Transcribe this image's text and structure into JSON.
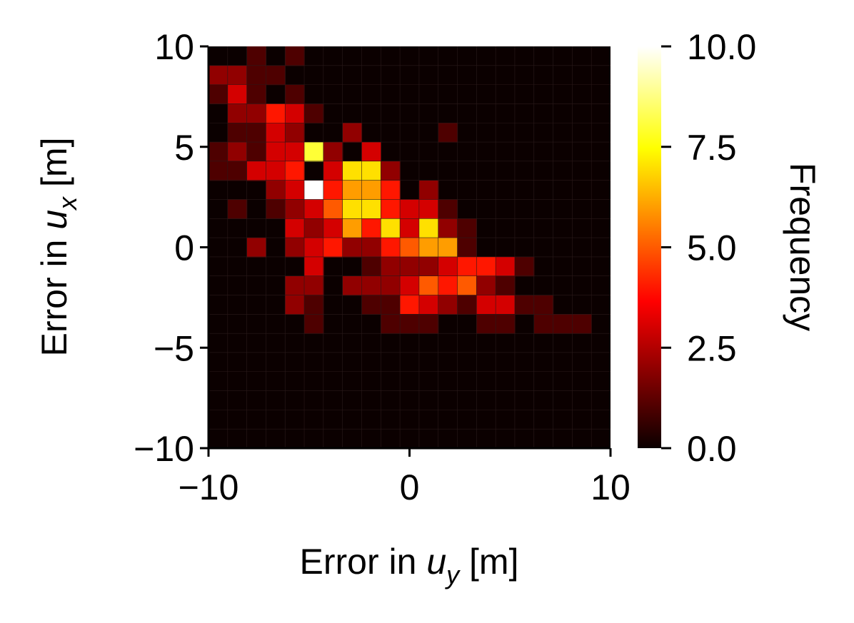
{
  "chart_data": {
    "type": "heatmap",
    "xlabel": {
      "pre": "Error in ",
      "var": "u",
      "sub": "y",
      "post": " [m]"
    },
    "ylabel": {
      "pre": "Error in ",
      "var": "u",
      "sub": "x",
      "post": " [m]"
    },
    "xlim": [
      -10,
      10
    ],
    "ylim": [
      -10,
      10
    ],
    "x_ticks": [
      "−10",
      "0",
      "10"
    ],
    "y_ticks": [
      "10",
      "5",
      "0",
      "−5",
      "−10"
    ],
    "colorbar": {
      "label": "Frequency",
      "range": [
        0,
        10
      ],
      "ticks": [
        "10.0",
        "7.5",
        "5.0",
        "2.5",
        "0.0"
      ],
      "colormap": "hot",
      "stops": [
        "#0b0000",
        "#ff0000",
        "#ffff00",
        "#ffffff"
      ]
    },
    "bins_x": 21,
    "bins_y": 21,
    "bin_rows_top_to_bottom": [
      [
        0,
        0,
        1,
        0,
        1,
        0,
        0,
        0,
        0,
        0,
        0,
        0,
        0,
        0,
        0,
        0,
        0,
        0,
        0,
        0,
        0
      ],
      [
        2,
        2,
        1,
        1,
        0,
        0,
        0,
        0,
        0,
        0,
        0,
        0,
        0,
        0,
        0,
        0,
        0,
        0,
        0,
        0,
        0
      ],
      [
        1,
        3,
        1,
        0,
        1,
        0,
        0,
        0,
        0,
        0,
        0,
        0,
        0,
        0,
        0,
        0,
        0,
        0,
        0,
        0,
        0
      ],
      [
        0,
        2,
        2,
        4,
        3,
        1,
        0,
        0,
        0,
        0,
        0,
        0,
        0,
        0,
        0,
        0,
        0,
        0,
        0,
        0,
        0
      ],
      [
        0,
        1,
        1,
        3,
        2,
        0,
        0,
        2,
        0,
        0,
        0,
        0,
        1,
        0,
        0,
        0,
        0,
        0,
        0,
        0,
        0
      ],
      [
        1,
        2,
        1,
        3,
        3,
        8,
        2,
        0,
        3,
        0,
        0,
        0,
        0,
        0,
        0,
        0,
        0,
        0,
        0,
        0,
        0
      ],
      [
        1,
        1,
        3,
        3,
        4,
        0,
        3,
        7,
        7,
        2,
        0,
        0,
        0,
        0,
        0,
        0,
        0,
        0,
        0,
        0,
        0
      ],
      [
        0,
        0,
        0,
        2,
        3,
        10,
        4,
        6,
        6,
        4,
        0,
        2,
        0,
        0,
        0,
        0,
        0,
        0,
        0,
        0,
        0
      ],
      [
        0,
        1,
        0,
        1,
        2,
        3,
        5,
        7,
        7,
        4,
        3,
        3,
        1,
        0,
        0,
        0,
        0,
        0,
        0,
        0,
        0
      ],
      [
        0,
        0,
        0,
        0,
        3,
        2,
        3,
        6,
        4,
        7,
        3,
        7,
        2,
        1,
        0,
        0,
        0,
        0,
        0,
        0,
        0
      ],
      [
        0,
        0,
        2,
        0,
        2,
        3,
        4,
        2,
        2,
        4,
        5,
        6,
        6,
        1,
        0,
        0,
        0,
        0,
        0,
        0,
        0
      ],
      [
        0,
        0,
        0,
        0,
        0,
        3,
        0,
        0,
        1,
        2,
        2,
        2,
        3,
        4,
        4,
        3,
        1,
        0,
        0,
        0,
        0
      ],
      [
        0,
        0,
        0,
        0,
        0,
        0,
        0,
        0,
        0,
        0,
        0,
        0,
        0,
        0,
        0,
        0,
        0,
        0,
        0,
        0,
        0
      ],
      [
        0,
        0,
        0,
        0,
        0,
        0,
        0,
        0,
        0,
        0,
        0,
        0,
        0,
        0,
        0,
        0,
        0,
        0,
        0,
        0,
        0
      ],
      [
        0,
        0,
        0,
        0,
        0,
        0,
        0,
        0,
        0,
        0,
        0,
        0,
        0,
        0,
        0,
        0,
        0,
        0,
        0,
        0,
        0
      ],
      [
        0,
        0,
        0,
        0,
        0,
        0,
        0,
        0,
        0,
        0,
        0,
        0,
        0,
        0,
        0,
        0,
        0,
        0,
        0,
        0,
        0
      ],
      [
        0,
        0,
        0,
        0,
        0,
        0,
        0,
        0,
        0,
        0,
        0,
        0,
        0,
        0,
        0,
        0,
        0,
        0,
        0,
        0,
        0
      ],
      [
        0,
        0,
        0,
        0,
        0,
        0,
        0,
        0,
        0,
        0,
        0,
        0,
        0,
        0,
        0,
        0,
        0,
        0,
        0,
        0,
        0
      ],
      [
        0,
        0,
        0,
        0,
        0,
        0,
        0,
        0,
        0,
        0,
        0,
        0,
        0,
        0,
        0,
        0,
        0,
        0,
        0,
        0,
        0
      ],
      [
        0,
        0,
        0,
        0,
        0,
        0,
        0,
        0,
        0,
        0,
        0,
        0,
        0,
        0,
        0,
        0,
        0,
        0,
        0,
        0,
        0
      ],
      [
        0,
        0,
        0,
        0,
        0,
        0,
        0,
        0,
        0,
        0,
        0,
        0,
        0,
        0,
        0,
        0,
        0,
        0,
        0,
        0,
        0
      ]
    ],
    "bin_rows_lower_half": [
      [
        0,
        0,
        0,
        0,
        2,
        2,
        0,
        2,
        2,
        2,
        3,
        5,
        4,
        5,
        2,
        1,
        0,
        0,
        0,
        0,
        0
      ],
      [
        0,
        0,
        0,
        0,
        2,
        1,
        0,
        0,
        1,
        1,
        4,
        3,
        2,
        1,
        3,
        3,
        1,
        1,
        0,
        0,
        0
      ],
      [
        0,
        0,
        0,
        0,
        0,
        1,
        0,
        0,
        0,
        1,
        1,
        1,
        0,
        0,
        1,
        1,
        0,
        1,
        1,
        1,
        0
      ],
      [
        0,
        0,
        0,
        0,
        0,
        0,
        0,
        0,
        0,
        0,
        0,
        0,
        0,
        0,
        0,
        0,
        0,
        0,
        0,
        0,
        0
      ],
      [
        0,
        0,
        0,
        0,
        0,
        0,
        0,
        0,
        0,
        0,
        0,
        0,
        0,
        0,
        0,
        0,
        0,
        0,
        0,
        0,
        0
      ],
      [
        0,
        0,
        0,
        0,
        0,
        0,
        0,
        0,
        0,
        0,
        0,
        0,
        0,
        0,
        0,
        0,
        0,
        0,
        0,
        0,
        0
      ],
      [
        0,
        0,
        0,
        0,
        0,
        0,
        0,
        0,
        0,
        0,
        0,
        0,
        0,
        0,
        0,
        0,
        0,
        0,
        0,
        0,
        0
      ],
      [
        0,
        0,
        0,
        0,
        0,
        0,
        0,
        0,
        0,
        0,
        0,
        0,
        0,
        0,
        0,
        0,
        0,
        0,
        0,
        0,
        0
      ],
      [
        0,
        0,
        0,
        0,
        0,
        0,
        0,
        0,
        0,
        0,
        0,
        0,
        0,
        0,
        0,
        0,
        0,
        0,
        0,
        0,
        0
      ]
    ]
  }
}
